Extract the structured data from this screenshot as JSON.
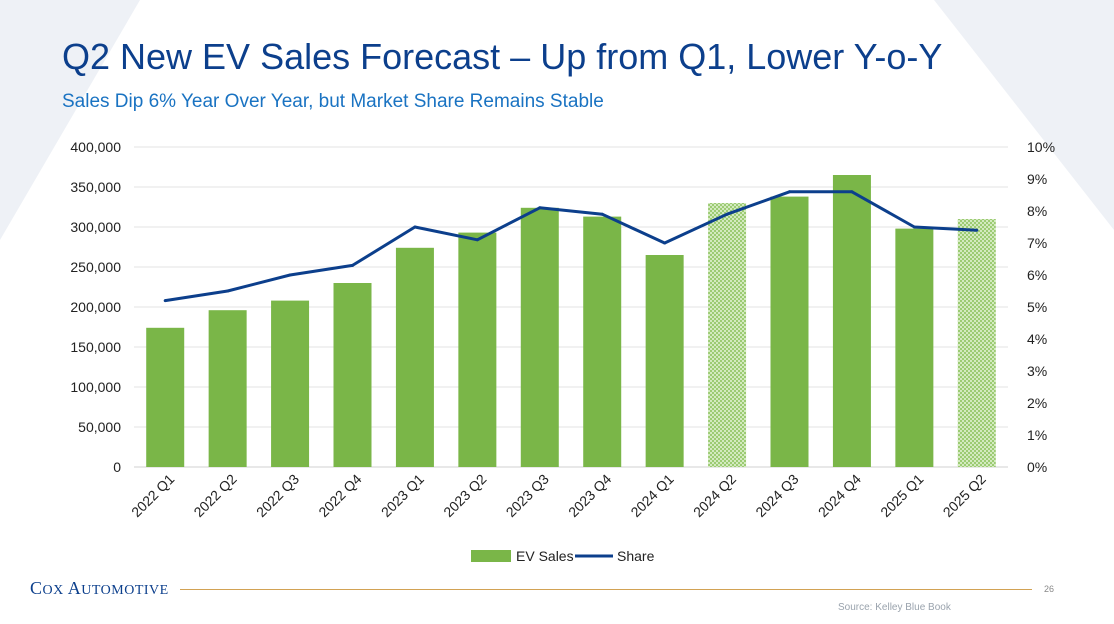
{
  "slide": {
    "title": "Q2 New EV Sales Forecast – Up from Q1, Lower Y-o-Y",
    "subtitle": "Sales Dip 6% Year Over Year, but Market Share Remains Stable",
    "logo": "COX AUTOMOTIVE",
    "page_number": "26",
    "source": "Source: Kelley Blue Book"
  },
  "colors": {
    "bar": "#7ab648",
    "line": "#0c3f8c",
    "grid": "#e3e3e3",
    "title": "#0c3f8c",
    "subtitle": "#1a73c2"
  },
  "chart_data": {
    "type": "bar",
    "categories": [
      "2022 Q1",
      "2022 Q2",
      "2022 Q3",
      "2022 Q4",
      "2023 Q1",
      "2023 Q2",
      "2023 Q3",
      "2023 Q4",
      "2024 Q1",
      "2024 Q2",
      "2024 Q3",
      "2024 Q4",
      "2025 Q1",
      "2025 Q2"
    ],
    "forecast": [
      false,
      false,
      false,
      false,
      false,
      false,
      false,
      false,
      false,
      true,
      false,
      false,
      false,
      true
    ],
    "series": [
      {
        "name": "EV Sales",
        "type": "bar",
        "axis": "left",
        "values": [
          174000,
          196000,
          208000,
          230000,
          274000,
          293000,
          324000,
          313000,
          265000,
          330000,
          338000,
          365000,
          298000,
          310000
        ]
      },
      {
        "name": "Share",
        "type": "line",
        "axis": "right",
        "values": [
          5.2,
          5.5,
          6.0,
          6.3,
          7.5,
          7.1,
          8.1,
          7.9,
          7.0,
          7.9,
          8.6,
          8.6,
          7.5,
          7.4
        ]
      }
    ],
    "ylim": [
      0,
      400000
    ],
    "y_ticks": [
      "0",
      "50,000",
      "100,000",
      "150,000",
      "200,000",
      "250,000",
      "300,000",
      "350,000",
      "400,000"
    ],
    "y2lim": [
      0,
      10
    ],
    "y2_ticks": [
      "0%",
      "1%",
      "2%",
      "3%",
      "4%",
      "5%",
      "6%",
      "7%",
      "8%",
      "9%",
      "10%"
    ],
    "legend": [
      "EV Sales",
      "Share"
    ],
    "legend_position": "bottom",
    "grid": true
  }
}
